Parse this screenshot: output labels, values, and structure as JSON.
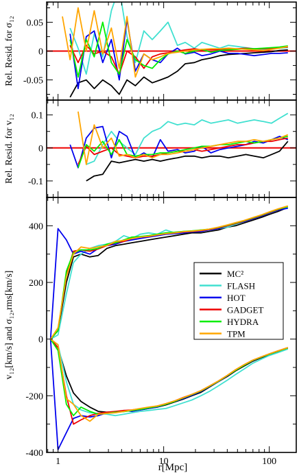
{
  "figure": {
    "xlabel": "r[Mpc]",
    "xlim": [
      0.78,
      180
    ],
    "x_ticks": [
      1,
      10,
      100
    ],
    "x_tick_labels": [
      "1",
      "10",
      "100"
    ]
  },
  "chart_data": [
    {
      "type": "line",
      "panel": "top",
      "ylabel": "Rel. Resid. for σ₁₂",
      "ylim": [
        -0.085,
        0.085
      ],
      "y_ticks": [
        -0.05,
        0,
        0.05
      ],
      "y_tick_labels": [
        "-0.05",
        "0",
        "0.05"
      ],
      "reference_line": {
        "y": 0,
        "color": "#ee0000"
      },
      "x": [
        1.1,
        1.3,
        1.55,
        1.85,
        2.2,
        2.65,
        3.2,
        3.8,
        4.5,
        5.4,
        6.5,
        7.8,
        9.3,
        11,
        13.5,
        16,
        19.5,
        23,
        28,
        34,
        41,
        50,
        60,
        72,
        88,
        105,
        125,
        150
      ],
      "series": [
        {
          "name": "MC²",
          "color": "#000000",
          "values": [
            null,
            -0.08,
            -0.055,
            -0.05,
            -0.065,
            -0.05,
            -0.06,
            -0.075,
            -0.05,
            -0.06,
            -0.045,
            -0.055,
            -0.05,
            -0.045,
            -0.035,
            -0.022,
            -0.02,
            -0.015,
            -0.012,
            -0.008,
            -0.006,
            -0.005,
            -0.004,
            -0.003,
            -0.002,
            -0.001,
            0.001,
            0.002
          ]
        },
        {
          "name": "FLASH",
          "color": "#40e0d0",
          "values": [
            null,
            0.04,
            0.005,
            -0.04,
            0.03,
            -0.01,
            0.07,
            0.11,
            0.025,
            -0.02,
            0.035,
            0.02,
            0.035,
            0.05,
            0.01,
            0.015,
            0.005,
            0.015,
            0.01,
            0.005,
            0.01,
            0.008,
            0.006,
            0.004,
            0.003,
            0.004,
            0.005,
            0.006
          ]
        },
        {
          "name": "HOT",
          "color": "#0000ee",
          "values": [
            null,
            0.03,
            -0.065,
            0.025,
            0.035,
            -0.02,
            0.02,
            -0.05,
            0.055,
            -0.035,
            -0.005,
            -0.015,
            -0.02,
            -0.005,
            0.005,
            -0.005,
            -0.002,
            -0.008,
            -0.005,
            0.0,
            -0.004,
            -0.004,
            -0.006,
            -0.008,
            -0.006,
            -0.004,
            -0.004,
            -0.003
          ]
        },
        {
          "name": "GADGET",
          "color": "#ee0000",
          "values": [
            null,
            0.01,
            -0.02,
            0.01,
            -0.005,
            0.0,
            -0.01,
            -0.04,
            0.0,
            -0.01,
            -0.03,
            -0.01,
            -0.005,
            -0.003,
            0.0,
            0.002,
            0.004,
            0.002,
            0.003,
            0.002,
            0.003,
            0.004,
            0.005,
            0.004,
            0.004,
            0.005,
            0.006,
            0.007
          ]
        },
        {
          "name": "HYDRA",
          "color": "#00ee00",
          "values": [
            null,
            0.02,
            -0.045,
            0.02,
            -0.01,
            0.05,
            -0.02,
            -0.04,
            0.02,
            -0.015,
            -0.025,
            -0.03,
            -0.015,
            -0.005,
            0.0,
            -0.004,
            0.0,
            0.003,
            -0.002,
            0.001,
            0.002,
            0.003,
            0.004,
            0.004,
            0.005,
            0.006,
            0.007,
            0.009
          ]
        },
        {
          "name": "TPM",
          "color": "#ffa500",
          "values": [
            0.06,
            -0.015,
            0.075,
            0.0,
            0.07,
            -0.005,
            0.04,
            -0.03,
            0.06,
            -0.045,
            -0.005,
            -0.015,
            -0.01,
            -0.004,
            -0.002,
            0.0,
            0.002,
            0.003,
            0.004,
            0.004,
            0.005,
            0.004,
            0.003,
            0.002,
            0.001,
            0.003,
            0.005,
            0.008
          ]
        }
      ]
    },
    {
      "type": "line",
      "panel": "middle",
      "ylabel": "Rel. Resid. for v₁₂",
      "ylim": [
        -0.15,
        0.145
      ],
      "y_ticks": [
        -0.1,
        0,
        0.1
      ],
      "y_tick_labels": [
        "-0.1",
        "0",
        "0.1"
      ],
      "reference_line": {
        "y": 0,
        "color": "#ee0000"
      },
      "x": [
        1.1,
        1.3,
        1.55,
        1.85,
        2.2,
        2.65,
        3.2,
        3.8,
        4.5,
        5.4,
        6.5,
        7.8,
        9.3,
        11,
        13.5,
        16,
        19.5,
        23,
        28,
        34,
        41,
        50,
        60,
        72,
        88,
        105,
        125,
        150
      ],
      "series": [
        {
          "name": "MC²",
          "color": "#000000",
          "values": [
            null,
            null,
            null,
            -0.1,
            -0.085,
            -0.08,
            -0.04,
            -0.045,
            -0.04,
            -0.035,
            -0.04,
            -0.035,
            -0.04,
            -0.035,
            -0.03,
            -0.025,
            -0.025,
            -0.03,
            -0.025,
            -0.025,
            -0.03,
            -0.025,
            -0.02,
            -0.025,
            -0.03,
            -0.02,
            -0.01,
            0.02
          ]
        },
        {
          "name": "FLASH",
          "color": "#40e0d0",
          "values": [
            null,
            null,
            null,
            -0.05,
            -0.04,
            0.01,
            0.05,
            0.02,
            0.0,
            -0.02,
            0.03,
            0.05,
            0.06,
            0.08,
            0.07,
            0.075,
            0.07,
            0.085,
            0.075,
            0.08,
            0.085,
            0.075,
            0.08,
            0.085,
            0.08,
            0.075,
            0.09,
            0.105
          ]
        },
        {
          "name": "HOT",
          "color": "#0000ee",
          "values": [
            null,
            0.01,
            -0.06,
            0.03,
            0.06,
            0.065,
            -0.03,
            0.05,
            0.035,
            -0.03,
            -0.015,
            -0.03,
            0.025,
            -0.01,
            -0.005,
            -0.015,
            -0.01,
            0.005,
            -0.015,
            -0.005,
            0.0,
            0.005,
            0.01,
            0.02,
            0.015,
            0.025,
            0.035,
            0.025
          ]
        },
        {
          "name": "GADGET",
          "color": "#ee0000",
          "values": [
            null,
            null,
            -0.05,
            0.005,
            -0.02,
            -0.01,
            0.0,
            -0.02,
            -0.025,
            -0.03,
            -0.025,
            -0.025,
            -0.02,
            -0.015,
            -0.01,
            -0.01,
            -0.005,
            -0.01,
            -0.005,
            0.0,
            0.005,
            0.01,
            0.01,
            0.015,
            0.02,
            0.02,
            0.025,
            0.03
          ]
        },
        {
          "name": "HYDRA",
          "color": "#00ee00",
          "values": [
            null,
            null,
            -0.06,
            0.01,
            -0.01,
            0.02,
            -0.02,
            0.025,
            -0.02,
            -0.025,
            -0.02,
            -0.02,
            -0.015,
            -0.015,
            -0.01,
            -0.005,
            0.0,
            0.005,
            0.005,
            0.01,
            0.01,
            0.015,
            0.02,
            0.015,
            0.02,
            0.025,
            0.03,
            0.035
          ]
        },
        {
          "name": "TPM",
          "color": "#ffa500",
          "values": [
            null,
            null,
            0.11,
            -0.05,
            0.07,
            0.0,
            0.03,
            -0.025,
            -0.02,
            -0.03,
            -0.02,
            -0.03,
            -0.02,
            -0.02,
            -0.015,
            -0.01,
            -0.005,
            0.0,
            0.005,
            0.01,
            0.015,
            0.02,
            0.02,
            0.025,
            0.02,
            0.025,
            0.03,
            0.04
          ]
        }
      ]
    },
    {
      "type": "line",
      "panel": "bottom",
      "ylabel": "v₁₂[km/s] and σ₁₂,rms[km/s]",
      "ylim": [
        -400,
        500
      ],
      "y_ticks": [
        -400,
        -200,
        0,
        200,
        400
      ],
      "y_tick_labels": [
        "-400",
        "-200",
        "0",
        "200",
        "400"
      ],
      "x": [
        0.85,
        1.0,
        1.2,
        1.4,
        1.65,
        2.0,
        2.4,
        2.9,
        3.5,
        4.2,
        5.0,
        6.0,
        7.2,
        8.7,
        10.5,
        12.7,
        15.3,
        18.5,
        22.5,
        27,
        33,
        40,
        48,
        58,
        70,
        85,
        100,
        120,
        150
      ],
      "series": [
        {
          "name": "MC²",
          "color": "#000000",
          "upper": [
            0,
            30,
            200,
            290,
            300,
            290,
            295,
            320,
            330,
            335,
            340,
            345,
            350,
            355,
            360,
            365,
            370,
            375,
            375,
            380,
            385,
            395,
            400,
            410,
            420,
            430,
            440,
            450,
            465
          ],
          "lower": [
            0,
            -30,
            -130,
            -190,
            -220,
            -240,
            -255,
            -258,
            -258,
            -255,
            -252,
            -250,
            -245,
            -240,
            -232,
            -222,
            -212,
            -200,
            -188,
            -170,
            -150,
            -132,
            -112,
            -95,
            -78,
            -65,
            -55,
            -45,
            -32
          ]
        },
        {
          "name": "FLASH",
          "color": "#40e0d0",
          "upper": [
            0,
            15,
            160,
            270,
            300,
            320,
            330,
            335,
            345,
            365,
            355,
            370,
            375,
            370,
            385,
            375,
            380,
            380,
            385,
            385,
            390,
            395,
            405,
            415,
            425,
            435,
            445,
            455,
            465
          ],
          "lower": [
            0,
            -20,
            -150,
            -230,
            -250,
            -260,
            -262,
            -265,
            -270,
            -265,
            -260,
            -255,
            -252,
            -248,
            -245,
            -235,
            -225,
            -215,
            -200,
            -185,
            -165,
            -145,
            -125,
            -105,
            -85,
            -70,
            -58,
            -48,
            -35
          ]
        },
        {
          "name": "HOT",
          "color": "#0000ee",
          "upper": [
            0,
            390,
            350,
            300,
            310,
            300,
            320,
            330,
            335,
            345,
            350,
            355,
            360,
            365,
            370,
            372,
            375,
            378,
            380,
            385,
            390,
            400,
            408,
            415,
            425,
            435,
            445,
            455,
            462
          ],
          "lower": [
            0,
            -390,
            -330,
            -280,
            -270,
            -275,
            -270,
            -260,
            -260,
            -252,
            -255,
            -250,
            -245,
            -240,
            -230,
            -220,
            -210,
            -198,
            -185,
            -168,
            -150,
            -130,
            -110,
            -92,
            -76,
            -63,
            -53,
            -43,
            -30
          ]
        },
        {
          "name": "GADGET",
          "color": "#ee0000",
          "upper": [
            0,
            30,
            230,
            310,
            315,
            310,
            318,
            330,
            340,
            345,
            355,
            360,
            362,
            368,
            372,
            375,
            378,
            380,
            383,
            387,
            393,
            400,
            408,
            417,
            427,
            437,
            447,
            457,
            468
          ],
          "lower": [
            0,
            -30,
            -200,
            -300,
            -285,
            -270,
            -262,
            -258,
            -255,
            -252,
            -250,
            -246,
            -242,
            -236,
            -228,
            -218,
            -206,
            -195,
            -182,
            -166,
            -148,
            -128,
            -108,
            -90,
            -74,
            -62,
            -52,
            -42,
            -30
          ]
        },
        {
          "name": "HYDRA",
          "color": "#00ee00",
          "upper": [
            0,
            30,
            240,
            305,
            315,
            315,
            320,
            335,
            340,
            350,
            360,
            362,
            365,
            370,
            375,
            377,
            380,
            382,
            385,
            388,
            394,
            402,
            410,
            418,
            428,
            438,
            448,
            458,
            468
          ],
          "lower": [
            0,
            -40,
            -230,
            -270,
            -240,
            -255,
            -265,
            -262,
            -258,
            -256,
            -252,
            -248,
            -243,
            -238,
            -230,
            -220,
            -208,
            -196,
            -183,
            -167,
            -149,
            -129,
            -110,
            -92,
            -75,
            -63,
            -53,
            -43,
            -31
          ]
        },
        {
          "name": "TPM",
          "color": "#ffa500",
          "upper": [
            0,
            40,
            220,
            300,
            325,
            320,
            325,
            330,
            345,
            348,
            355,
            360,
            363,
            368,
            372,
            375,
            379,
            381,
            384,
            388,
            395,
            403,
            411,
            419,
            429,
            439,
            449,
            459,
            470
          ],
          "lower": [
            0,
            -20,
            -210,
            -230,
            -270,
            -290,
            -265,
            -262,
            -260,
            -255,
            -250,
            -245,
            -240,
            -236,
            -228,
            -218,
            -207,
            -195,
            -182,
            -166,
            -148,
            -128,
            -108,
            -90,
            -74,
            -62,
            -52,
            -42,
            -30
          ]
        }
      ],
      "legend": {
        "placement": "right",
        "entries": [
          {
            "label": "MC²",
            "color": "#000000"
          },
          {
            "label": "FLASH",
            "color": "#40e0d0"
          },
          {
            "label": "HOT",
            "color": "#0000ee"
          },
          {
            "label": "GADGET",
            "color": "#ee0000"
          },
          {
            "label": "HYDRA",
            "color": "#00ee00"
          },
          {
            "label": "TPM",
            "color": "#ffa500"
          }
        ]
      }
    }
  ]
}
